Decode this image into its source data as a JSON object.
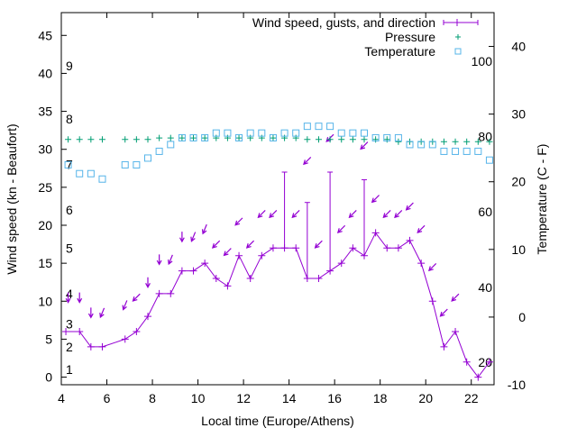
{
  "chart_data": {
    "type": "line",
    "title": "",
    "xlabel": "Local time (Europe/Athens)",
    "ylabel": "Wind speed (kn - Beaufort)",
    "y2label": "Temperature (C - F)",
    "xlim": [
      4,
      23
    ],
    "ylim": [
      -1,
      48
    ],
    "y2lim": [
      -10,
      45
    ],
    "x_ticks": [
      4,
      6,
      8,
      10,
      12,
      14,
      16,
      18,
      20,
      22
    ],
    "y_ticks": [
      0,
      5,
      10,
      15,
      20,
      25,
      30,
      35,
      40,
      45
    ],
    "y2_ticks": [
      -10,
      0,
      10,
      20,
      30,
      40
    ],
    "beaufort_labels": [
      {
        "label": "1",
        "y": 1
      },
      {
        "label": "2",
        "y": 4
      },
      {
        "label": "3",
        "y": 7
      },
      {
        "label": "4",
        "y": 11
      },
      {
        "label": "5",
        "y": 17
      },
      {
        "label": "6",
        "y": 22
      },
      {
        "label": "7",
        "y": 28
      },
      {
        "label": "8",
        "y": 34
      },
      {
        "label": "9",
        "y": 41
      }
    ],
    "fahrenheit_labels": [
      {
        "label": "20",
        "temp_c": -6.7
      },
      {
        "label": "40",
        "temp_c": 4.4
      },
      {
        "label": "60",
        "temp_c": 15.6
      },
      {
        "label": "80",
        "temp_c": 26.7
      },
      {
        "label": "100",
        "temp_c": 37.8
      }
    ],
    "legend_position": "top-right",
    "series": [
      {
        "name": "Wind speed, gusts, and direction",
        "color": "#9400d3",
        "x": [
          4.2,
          4.8,
          5.3,
          5.8,
          6.8,
          7.3,
          7.8,
          8.3,
          8.8,
          9.3,
          9.8,
          10.3,
          10.8,
          11.3,
          11.8,
          12.3,
          12.8,
          13.3,
          13.8,
          14.3,
          14.8,
          15.3,
          15.8,
          16.3,
          16.8,
          17.3,
          17.8,
          18.3,
          18.8,
          19.3,
          19.8,
          20.3,
          20.8,
          21.3,
          21.8,
          22.3,
          22.8
        ],
        "values": [
          6,
          6,
          4,
          4,
          5,
          6,
          8,
          11,
          11,
          14,
          14,
          15,
          13,
          12,
          16,
          13,
          16,
          17,
          17,
          17,
          13,
          13,
          14,
          15,
          17,
          16,
          19,
          17,
          17,
          18,
          15,
          10,
          4,
          6,
          2,
          0,
          2
        ],
        "gusts": [
          {
            "x": 13.8,
            "value": 27
          },
          {
            "x": 14.8,
            "value": 23
          },
          {
            "x": 15.8,
            "value": 27
          },
          {
            "x": 17.3,
            "value": 26
          }
        ],
        "direction_arrows": [
          {
            "x": 4.3,
            "y": 10.5,
            "dir": "s"
          },
          {
            "x": 4.8,
            "y": 10.5,
            "dir": "s"
          },
          {
            "x": 5.3,
            "y": 8.5,
            "dir": "s"
          },
          {
            "x": 5.8,
            "y": 8.5,
            "dir": "ssw"
          },
          {
            "x": 6.8,
            "y": 9.5,
            "dir": "ssw"
          },
          {
            "x": 7.3,
            "y": 10.5,
            "dir": "sw"
          },
          {
            "x": 7.8,
            "y": 12.5,
            "dir": "s"
          },
          {
            "x": 8.3,
            "y": 15.5,
            "dir": "s"
          },
          {
            "x": 8.8,
            "y": 15.5,
            "dir": "ssw"
          },
          {
            "x": 9.3,
            "y": 18.5,
            "dir": "s"
          },
          {
            "x": 9.8,
            "y": 18.5,
            "dir": "ssw"
          },
          {
            "x": 10.3,
            "y": 19.5,
            "dir": "ssw"
          },
          {
            "x": 10.8,
            "y": 17.5,
            "dir": "sw"
          },
          {
            "x": 11.3,
            "y": 16.5,
            "dir": "sw"
          },
          {
            "x": 11.8,
            "y": 20.5,
            "dir": "sw"
          },
          {
            "x": 12.3,
            "y": 17.5,
            "dir": "sw"
          },
          {
            "x": 12.8,
            "y": 21.5,
            "dir": "sw"
          },
          {
            "x": 13.3,
            "y": 21.5,
            "dir": "sw"
          },
          {
            "x": 14.3,
            "y": 21.5,
            "dir": "sw"
          },
          {
            "x": 14.8,
            "y": 28.5,
            "dir": "sw"
          },
          {
            "x": 15.3,
            "y": 17.5,
            "dir": "sw"
          },
          {
            "x": 15.8,
            "y": 31.5,
            "dir": "sw"
          },
          {
            "x": 16.3,
            "y": 19.5,
            "dir": "sw"
          },
          {
            "x": 16.8,
            "y": 21.5,
            "dir": "sw"
          },
          {
            "x": 17.3,
            "y": 30.5,
            "dir": "sw"
          },
          {
            "x": 17.8,
            "y": 23.5,
            "dir": "sw"
          },
          {
            "x": 18.3,
            "y": 21.5,
            "dir": "sw"
          },
          {
            "x": 18.8,
            "y": 21.5,
            "dir": "sw"
          },
          {
            "x": 19.3,
            "y": 22.5,
            "dir": "sw"
          },
          {
            "x": 19.8,
            "y": 19.5,
            "dir": "sw"
          },
          {
            "x": 20.3,
            "y": 14.5,
            "dir": "sw"
          },
          {
            "x": 20.8,
            "y": 8.5,
            "dir": "sw"
          },
          {
            "x": 21.3,
            "y": 10.5,
            "dir": "sw"
          }
        ]
      },
      {
        "name": "Pressure",
        "color": "#009e73",
        "marker": "+",
        "x": [
          4.3,
          4.8,
          5.3,
          5.8,
          6.8,
          7.3,
          7.8,
          8.3,
          8.8,
          9.3,
          9.8,
          10.3,
          10.8,
          11.3,
          11.8,
          12.3,
          12.8,
          13.3,
          13.8,
          14.3,
          14.8,
          15.3,
          15.8,
          16.3,
          16.8,
          17.3,
          17.8,
          18.3,
          18.8,
          19.3,
          19.8,
          20.3,
          20.8,
          21.3,
          21.8,
          22.3,
          22.8
        ],
        "values": [
          31.3,
          31.3,
          31.3,
          31.3,
          31.3,
          31.3,
          31.3,
          31.5,
          31.5,
          31.5,
          31.5,
          31.5,
          31.5,
          31.5,
          31.5,
          31.5,
          31.5,
          31.5,
          31.5,
          31.5,
          31.3,
          31.3,
          31.3,
          31.3,
          31.3,
          31.3,
          31.3,
          31.3,
          31.0,
          31.0,
          31.0,
          31.0,
          31.0,
          31.0,
          31.0,
          31.0,
          31.0
        ]
      },
      {
        "name": "Temperature",
        "color": "#56b4e9",
        "marker": "square",
        "axis": "y2",
        "x": [
          4.3,
          4.8,
          5.3,
          5.8,
          6.8,
          7.3,
          7.8,
          8.3,
          8.8,
          9.3,
          9.8,
          10.3,
          10.8,
          11.3,
          11.8,
          12.3,
          12.8,
          13.3,
          13.8,
          14.3,
          14.8,
          15.3,
          15.8,
          16.3,
          16.8,
          17.3,
          17.8,
          18.3,
          18.8,
          19.3,
          19.8,
          20.3,
          20.8,
          21.3,
          21.8,
          22.3,
          22.8
        ],
        "values": [
          22.5,
          21.2,
          21.2,
          20.4,
          22.5,
          22.5,
          23.5,
          24.5,
          25.5,
          26.5,
          26.5,
          26.5,
          27.2,
          27.2,
          26.5,
          27.2,
          27.2,
          26.5,
          27.2,
          27.2,
          28.2,
          28.2,
          28.2,
          27.2,
          27.2,
          27.2,
          26.5,
          26.5,
          26.5,
          25.5,
          25.5,
          25.5,
          24.5,
          24.5,
          24.5,
          24.5,
          23.2
        ]
      }
    ]
  }
}
